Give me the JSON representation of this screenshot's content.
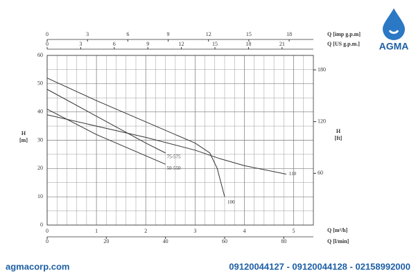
{
  "brand": "AGMA",
  "footer_left": "agmacorp.com",
  "footer_right": "09120044127 - 09120044128 - 02158992000",
  "chart_data": {
    "type": "line",
    "ylabel": "H",
    "ylabel_unit": "[m]",
    "ylim": [
      0,
      60
    ],
    "yticks": [
      0,
      10,
      20,
      30,
      40,
      50,
      60
    ],
    "y2label": "H",
    "y2label_unit": "[ft]",
    "y2lim": [
      0,
      196.85
    ],
    "y2ticks": [
      60,
      120,
      180
    ],
    "xlabel": "Q [m³/h]",
    "xlim": [
      0,
      5.4
    ],
    "xticks": [
      0,
      1,
      2,
      3,
      4,
      5
    ],
    "x_lmin": {
      "label": "Q [l/min]",
      "lim": [
        0,
        90
      ],
      "ticks": [
        0,
        20,
        40,
        60,
        80
      ]
    },
    "x_imp": {
      "label": "Q [imp g.p.m]",
      "lim": [
        0,
        19.8
      ],
      "ticks": [
        0,
        3,
        6,
        9,
        12,
        15,
        18
      ]
    },
    "x_us": {
      "label": "Q [US g.p.m.]",
      "lim": [
        0,
        23.8
      ],
      "ticks": [
        0,
        3,
        6,
        9,
        12,
        15,
        18,
        21
      ]
    },
    "grid": true,
    "series": [
      {
        "name": "110",
        "color": "#333333",
        "x": [
          0,
          1,
          2,
          3,
          3.5,
          4,
          4.85
        ],
        "values": [
          39,
          35,
          31,
          26.5,
          23.5,
          21,
          18
        ]
      },
      {
        "name": "100",
        "color": "#333333",
        "x": [
          0,
          1,
          2,
          3,
          3.3,
          3.45,
          3.6
        ],
        "values": [
          52,
          44,
          36.5,
          29,
          25.5,
          20,
          10
        ]
      },
      {
        "name": "75-575",
        "color": "#333333",
        "x": [
          0,
          1,
          2,
          2.4
        ],
        "values": [
          48,
          38.5,
          29,
          25.5
        ]
      },
      {
        "name": "50-550",
        "color": "#333333",
        "x": [
          0,
          1,
          2,
          2.4
        ],
        "values": [
          41,
          32,
          24.5,
          21.5
        ]
      }
    ]
  }
}
